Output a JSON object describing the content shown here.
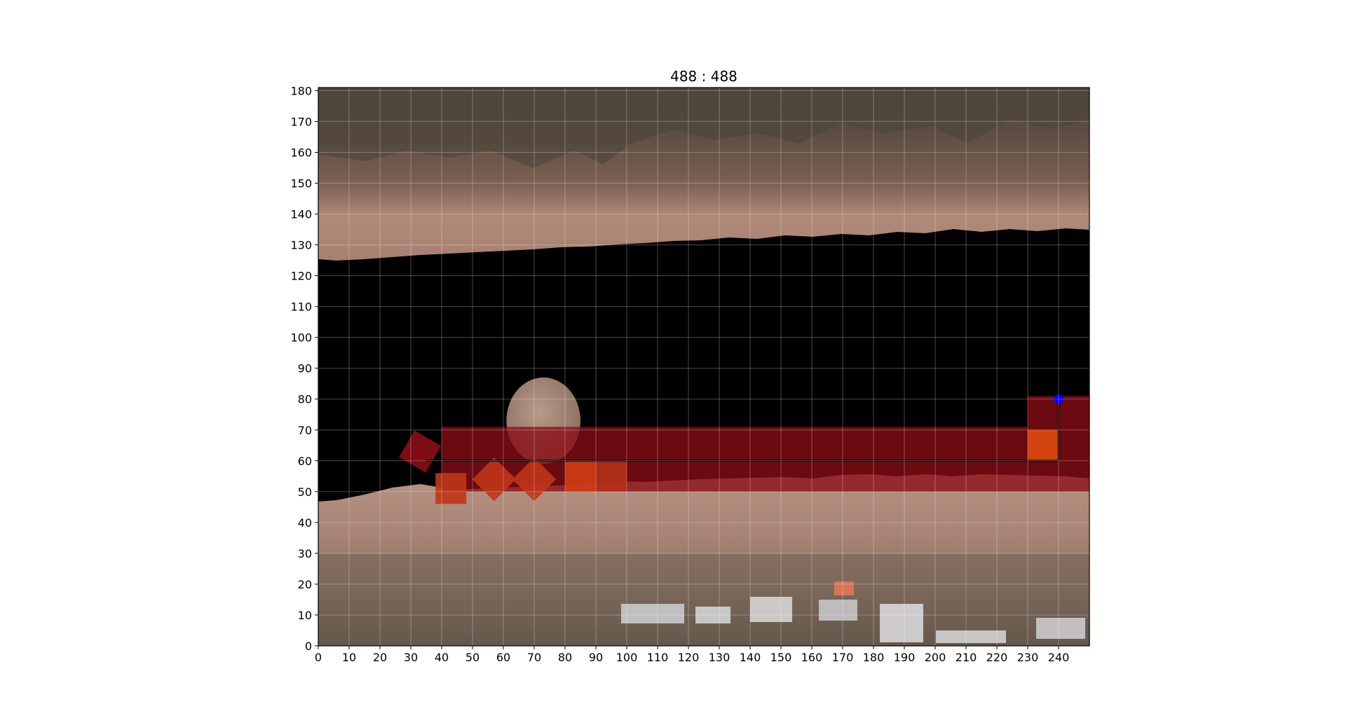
{
  "chart_data": {
    "type": "heatmap",
    "title": "488 : 488",
    "xlabel": "",
    "ylabel": "",
    "xlim": [
      0,
      250
    ],
    "ylim": [
      0,
      181
    ],
    "grid": true,
    "x_ticks": [
      0,
      10,
      20,
      30,
      40,
      50,
      60,
      70,
      80,
      90,
      100,
      110,
      120,
      130,
      140,
      150,
      160,
      170,
      180,
      190,
      200,
      210,
      220,
      230,
      240
    ],
    "y_ticks": [
      0,
      10,
      20,
      30,
      40,
      50,
      60,
      70,
      80,
      90,
      100,
      110,
      120,
      130,
      140,
      150,
      160,
      170,
      180
    ],
    "background": "aerial image of a riverbed with sand banks (top and bottom) and a black masked water channel in the middle",
    "boulder": {
      "cx": 73,
      "cy": 73,
      "rx": 12,
      "ry": 14
    },
    "cells": [
      {
        "x": 33,
        "y": 63,
        "w": 10,
        "h": 10,
        "angle": 30,
        "color": "#8b0d16"
      },
      {
        "x": 43,
        "y": 51,
        "w": 10,
        "h": 10,
        "angle": 0,
        "color": "#c0351a"
      },
      {
        "x": 57,
        "y": 54,
        "w": 10,
        "h": 10,
        "angle": 45,
        "color": "#c0351a"
      },
      {
        "x": 70,
        "y": 54,
        "w": 10,
        "h": 10,
        "angle": 45,
        "color": "#c0351a"
      },
      {
        "x": 85,
        "y": 55,
        "w": 10,
        "h": 10,
        "angle": 0,
        "color": "#d23c15"
      },
      {
        "x": 95,
        "y": 55,
        "w": 10,
        "h": 10,
        "angle": 0,
        "color": "#b5301a"
      },
      {
        "x": 235,
        "y": 65,
        "w": 10,
        "h": 10,
        "angle": 0,
        "color": "#e04a12"
      }
    ],
    "path_band": {
      "x0": 40,
      "x1": 250,
      "y0": 50,
      "y1": 71,
      "color": "#8b0d16"
    },
    "end_band": {
      "x0": 230,
      "x1": 250,
      "y0": 71,
      "y1": 81,
      "color": "#8b0d16"
    },
    "path_line": {
      "x": [
        35,
        240
      ],
      "y": [
        60,
        60
      ]
    },
    "marker": {
      "x": 240,
      "y": 80,
      "color": "#0000ff"
    },
    "colors": {
      "grid": "#ffffff",
      "mask": "#000000",
      "sand": "#a8857a",
      "dark_sand": "#6e5e52",
      "frame": "#000000"
    }
  }
}
